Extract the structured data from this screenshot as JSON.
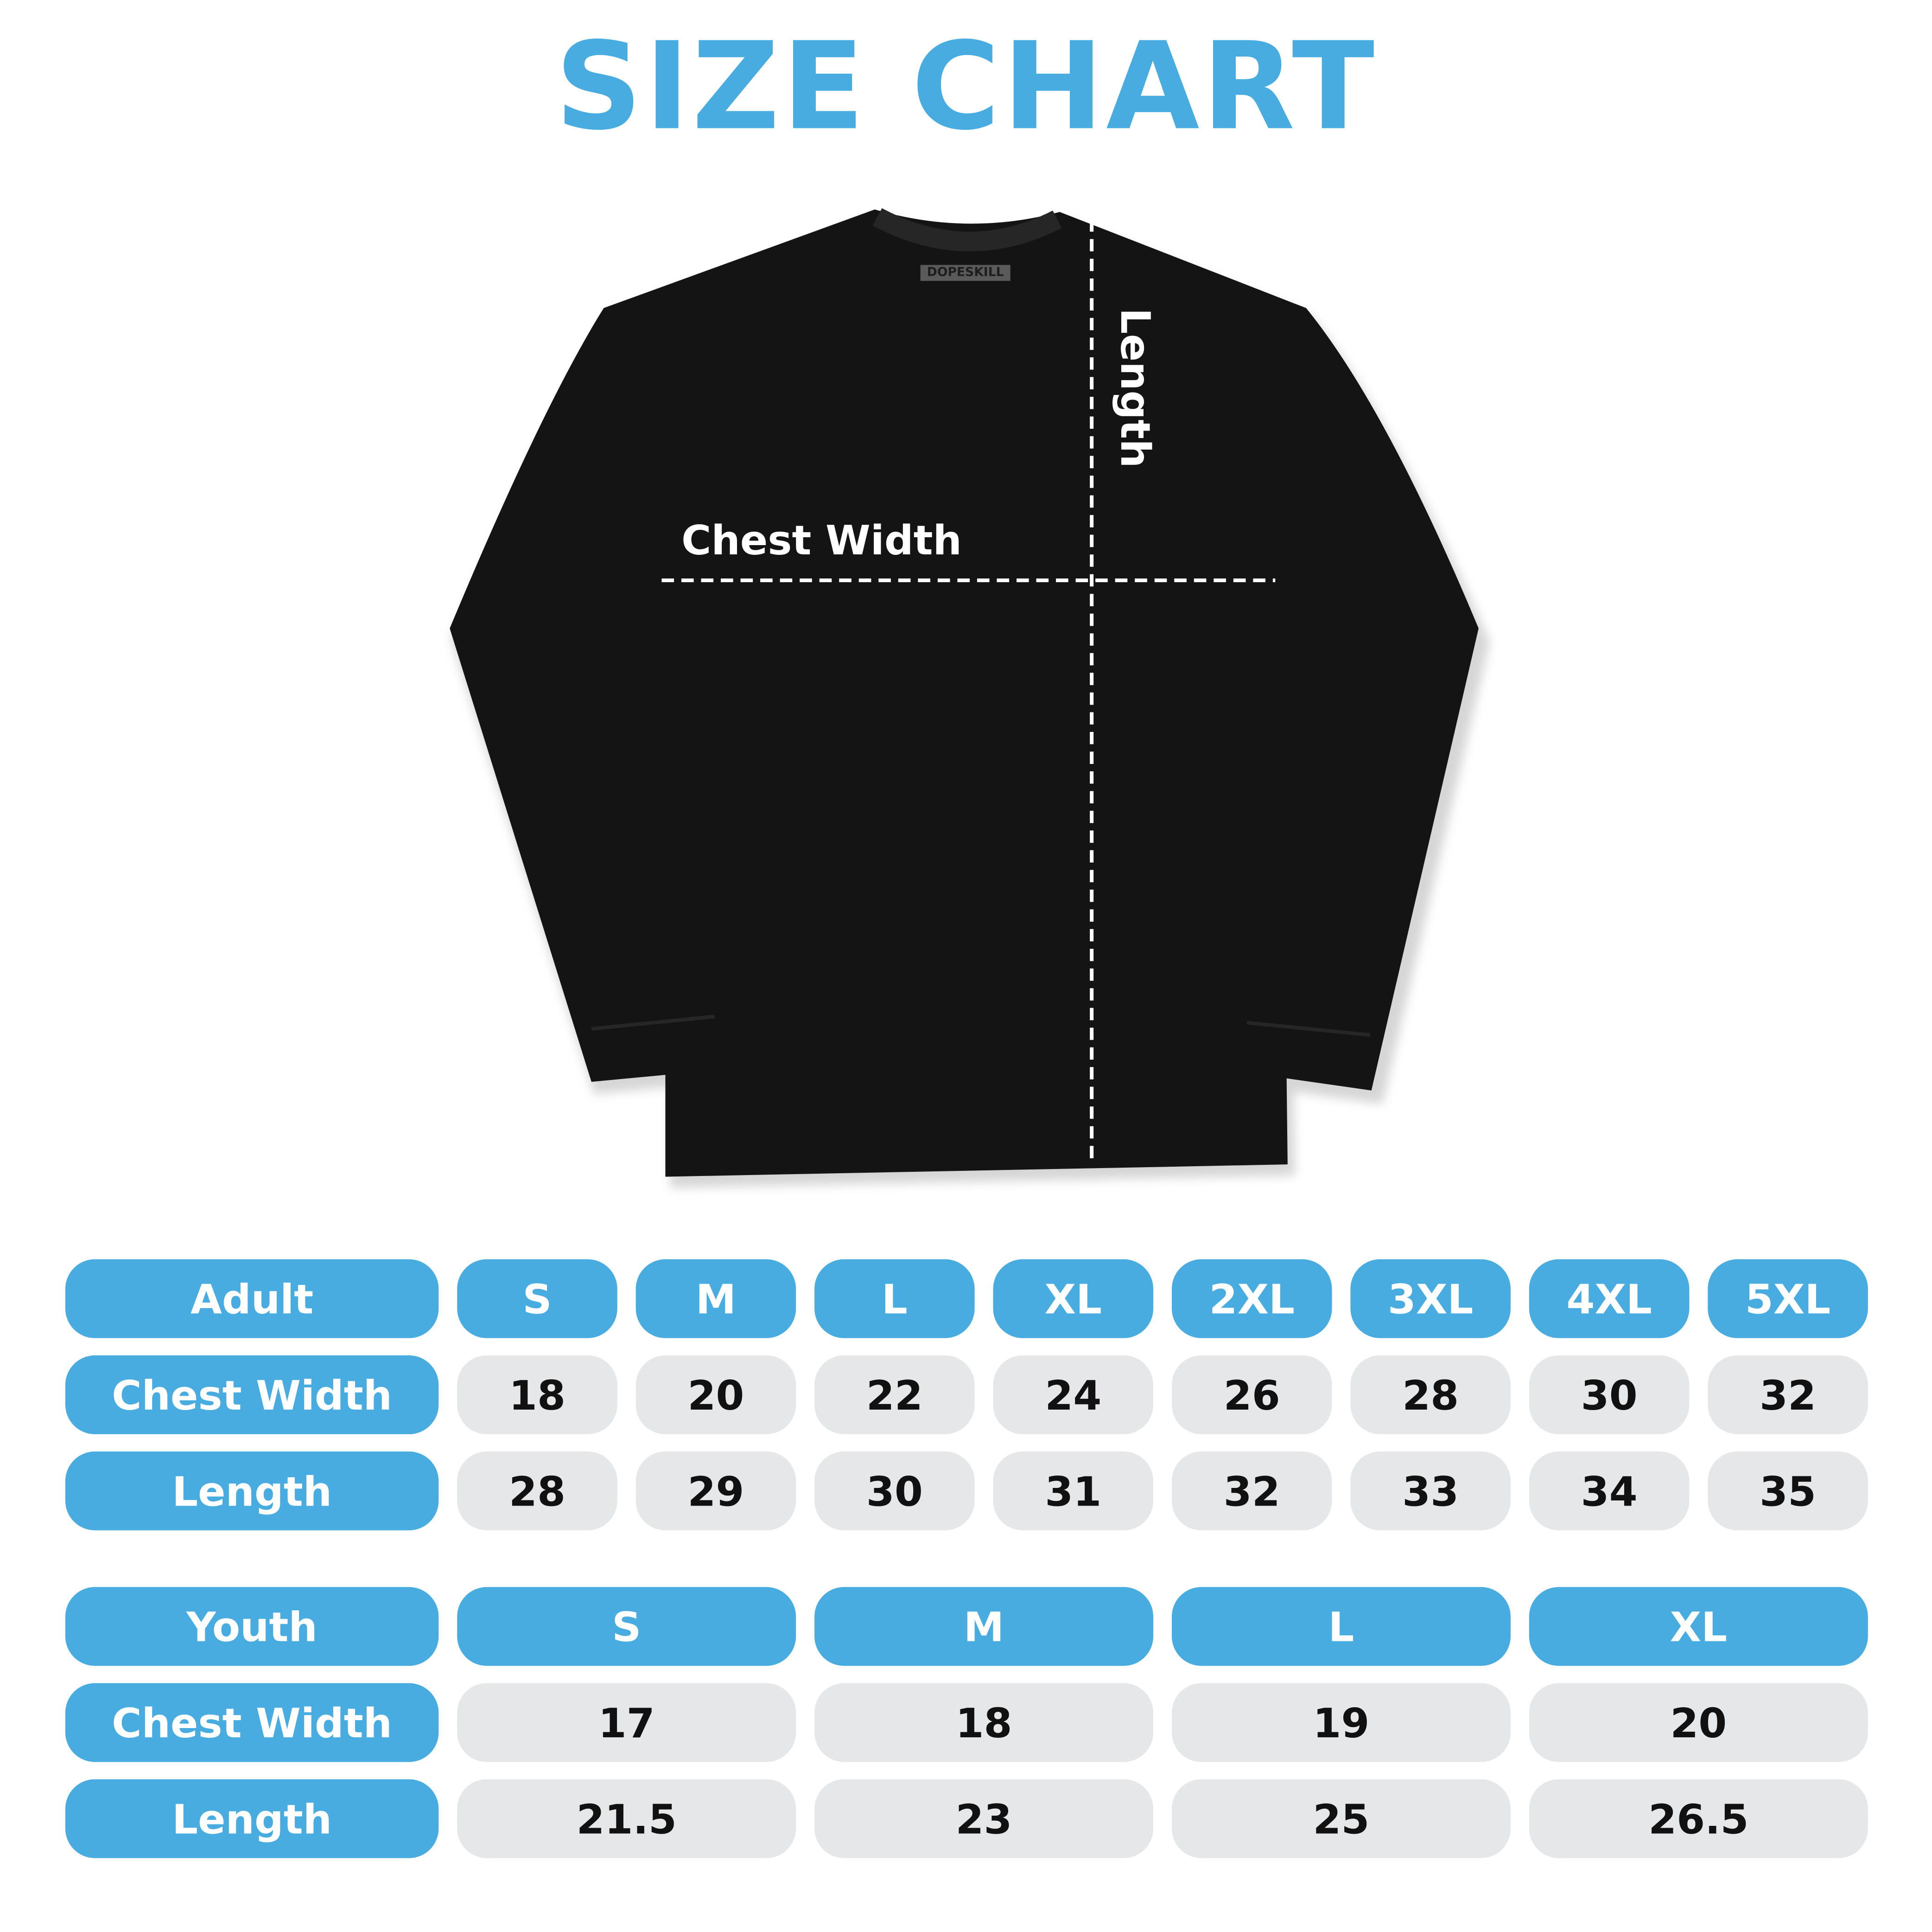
{
  "title": "SIZE CHART",
  "brand_tag": "DOPESKILL",
  "colors": {
    "accent": "#49ACE0",
    "cell": "#E6E7E9",
    "shirt": "#111111"
  },
  "shirt_labels": {
    "chest": "Chest Width",
    "length": "Length"
  },
  "adult": {
    "header": "Adult",
    "sizes": [
      "S",
      "M",
      "L",
      "XL",
      "2XL",
      "3XL",
      "4XL",
      "5XL"
    ],
    "rows": [
      {
        "label": "Chest Width",
        "values": [
          "18",
          "20",
          "22",
          "24",
          "26",
          "28",
          "30",
          "32"
        ]
      },
      {
        "label": "Length",
        "values": [
          "28",
          "29",
          "30",
          "31",
          "32",
          "33",
          "34",
          "35"
        ]
      }
    ]
  },
  "youth": {
    "header": "Youth",
    "sizes": [
      "S",
      "M",
      "L",
      "XL"
    ],
    "rows": [
      {
        "label": "Chest Width",
        "values": [
          "17",
          "18",
          "19",
          "20"
        ]
      },
      {
        "label": "Length",
        "values": [
          "21.5",
          "23",
          "25",
          "26.5"
        ]
      }
    ]
  }
}
